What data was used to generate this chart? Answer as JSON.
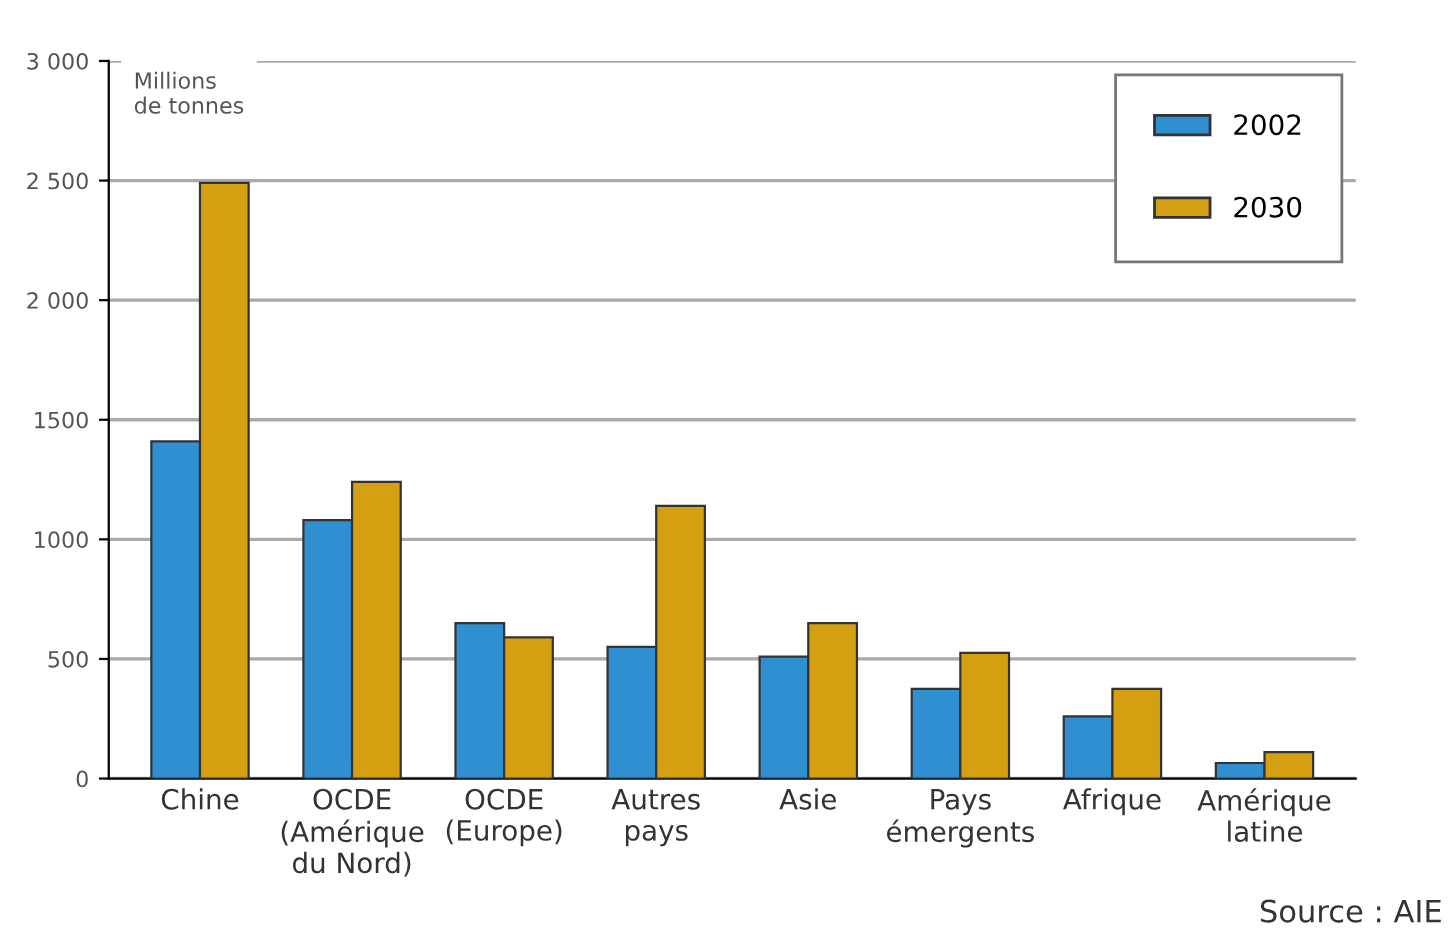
{
  "chart_data": {
    "type": "bar",
    "ylabel": "Millions\nde tonnes",
    "categories": [
      "Chine",
      "OCDE\n(Amérique\ndu Nord)",
      "OCDE\n(Europe)",
      "Autres\npays",
      "Asie",
      "Pays\némergents",
      "Afrique",
      "Amérique\nlatine"
    ],
    "series": [
      {
        "name": "2002",
        "color": "#2f8fd0",
        "values": [
          1410,
          1080,
          650,
          550,
          510,
          375,
          260,
          65
        ]
      },
      {
        "name": "2030",
        "color": "#d4a012",
        "values": [
          2490,
          1240,
          590,
          1140,
          650,
          525,
          375,
          110
        ]
      }
    ],
    "ylim": [
      0,
      3000
    ],
    "yticks": [
      0,
      500,
      {
        "value": 1000,
        "label": "1000"
      },
      {
        "value": 1500,
        "label": "1500"
      },
      {
        "value": 2000,
        "label": "2 000"
      },
      {
        "value": 2500,
        "label": "2 500"
      },
      {
        "value": 3000,
        "label": "3 000"
      }
    ],
    "grid": "y",
    "legend": "top right",
    "annotations": [
      "Source : AIE"
    ]
  }
}
